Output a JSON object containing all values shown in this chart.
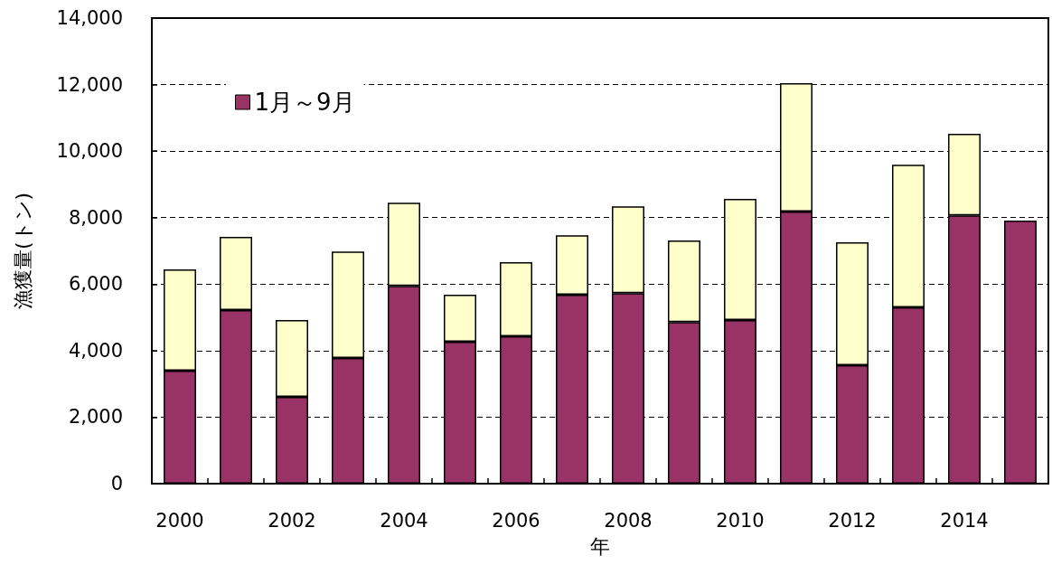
{
  "chart_data": {
    "type": "bar",
    "stacked": true,
    "xlabel": "年",
    "ylabel": "漁獲量(トン)",
    "categories": [
      "2000",
      null,
      "2002",
      null,
      "2004",
      null,
      "2006",
      null,
      "2008",
      null,
      "2010",
      null,
      "2012",
      null,
      "2014",
      null
    ],
    "series": [
      {
        "name": "1月～9月",
        "color": "#993366",
        "values": [
          3400,
          5220,
          2610,
          3780,
          5950,
          4270,
          4430,
          5680,
          5730,
          4860,
          4920,
          8180,
          3560,
          5300,
          8070,
          7910
        ]
      },
      {
        "color": "#ffffcc",
        "values": [
          3040,
          2200,
          2310,
          3200,
          2500,
          1410,
          2230,
          1790,
          2610,
          2450,
          3640,
          3860,
          3700,
          4290,
          2450,
          null
        ]
      }
    ],
    "ylim": [
      0,
      14000
    ],
    "yticks": [
      {
        "value": 0,
        "label": "0"
      },
      {
        "value": 2000,
        "label": "2,000"
      },
      {
        "value": 4000,
        "label": "4,000"
      },
      {
        "value": 6000,
        "label": "6,000"
      },
      {
        "value": 8000,
        "label": "8,000"
      },
      {
        "value": 10000,
        "label": "10,000"
      },
      {
        "value": 12000,
        "label": "12,000"
      },
      {
        "value": 14000,
        "label": "14,000"
      }
    ],
    "grid": "y",
    "legend": "top left"
  }
}
